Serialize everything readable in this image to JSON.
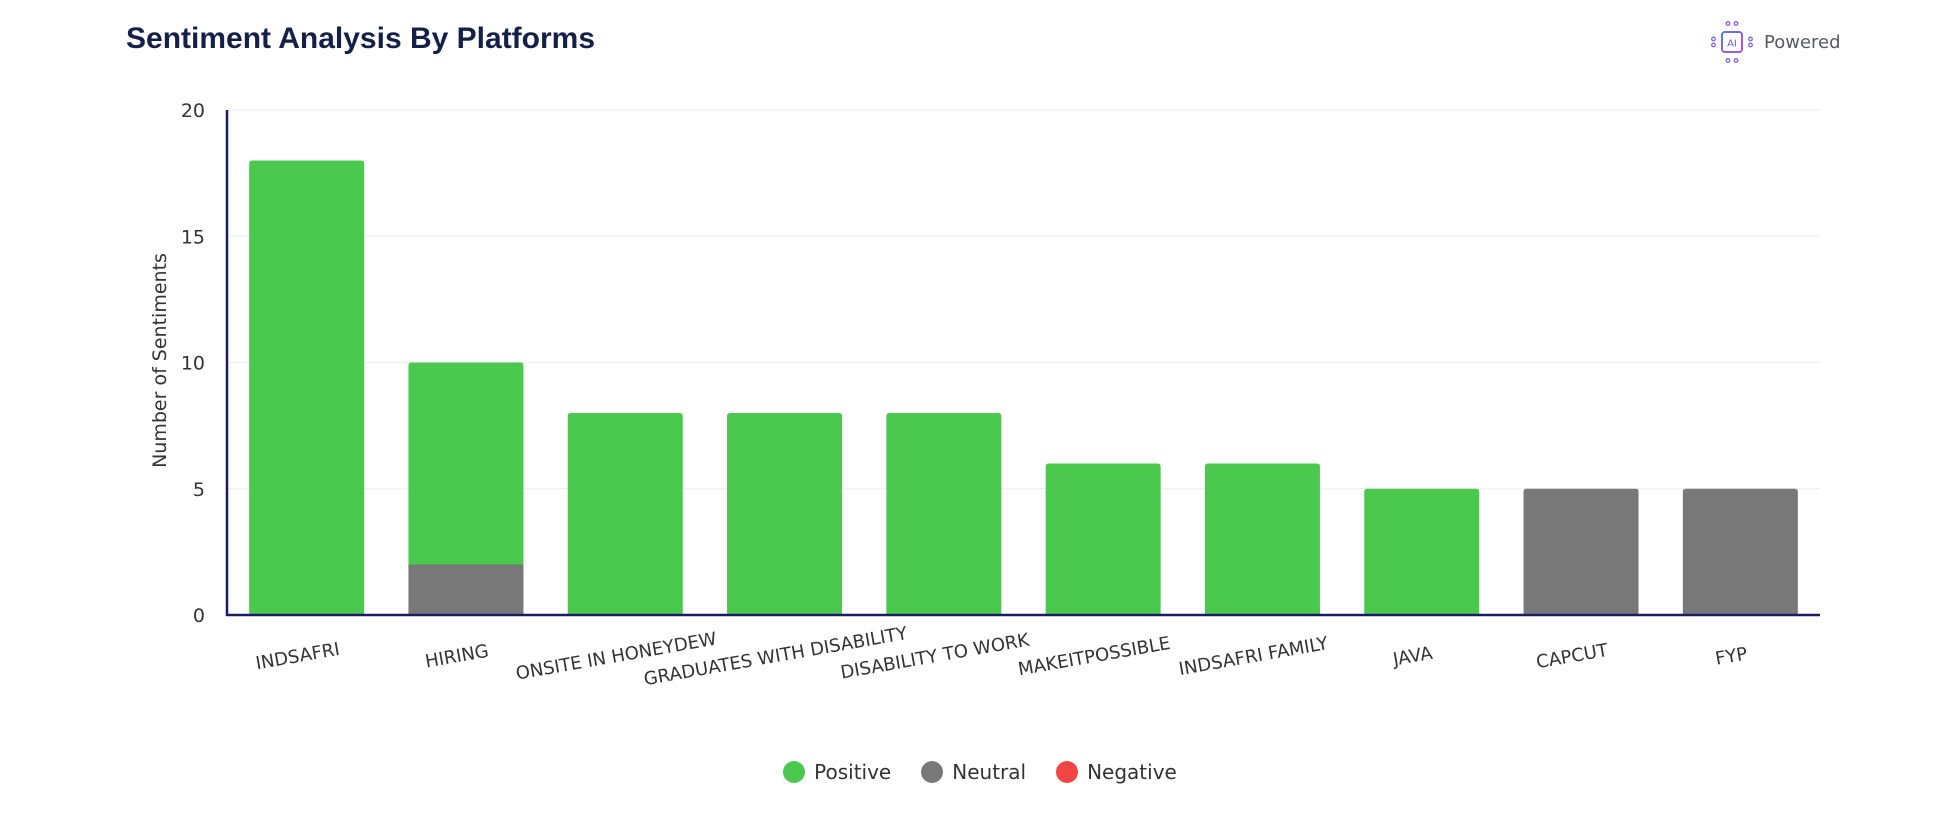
{
  "header": {
    "title": "Sentiment Analysis By Platforms",
    "badge_label": "Powered",
    "badge_icon": "ai-chip-icon",
    "badge_icon_text": "AI"
  },
  "colors": {
    "positive": "#4bc94f",
    "neutral": "#787878",
    "negative": "#f24646",
    "axis": "#1c1a66",
    "grid": "#ececec"
  },
  "chart_data": {
    "type": "bar",
    "stacked": true,
    "title": "Sentiment Analysis By Platforms",
    "xlabel": "",
    "ylabel": "Number of Sentiments",
    "ylim": [
      0,
      20
    ],
    "yticks": [
      0,
      5,
      10,
      15,
      20
    ],
    "grid": true,
    "legend_position": "bottom-center",
    "categories": [
      "INDSAFRI",
      "HIRING",
      "ONSITE IN HONEYDEW",
      "GRADUATES WITH DISABILITY",
      "DISABILITY TO WORK",
      "MAKEITPOSSIBLE",
      "INDSAFRI FAMILY",
      "JAVA",
      "CAPCUT",
      "FYP"
    ],
    "series": [
      {
        "name": "Positive",
        "values": [
          18,
          8,
          8,
          8,
          8,
          6,
          6,
          5,
          0,
          0
        ]
      },
      {
        "name": "Neutral",
        "values": [
          0,
          2,
          0,
          0,
          0,
          0,
          0,
          0,
          5,
          5
        ]
      },
      {
        "name": "Negative",
        "values": [
          0,
          0,
          0,
          0,
          0,
          0,
          0,
          0,
          0,
          0
        ]
      }
    ]
  }
}
